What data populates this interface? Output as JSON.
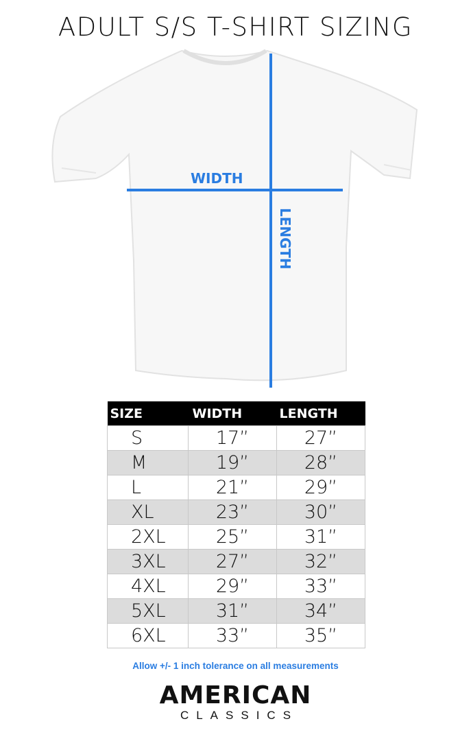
{
  "title": "ADULT S/S T-SHIRT SIZING",
  "diagram": {
    "width_label": "WIDTH",
    "length_label": "LENGTH",
    "line_color": "#2a7de1"
  },
  "table": {
    "headers": [
      "SIZE",
      "WIDTH",
      "LENGTH"
    ],
    "rows": [
      [
        "S",
        "17”",
        "27”"
      ],
      [
        "M",
        "19”",
        "28”"
      ],
      [
        "L",
        "21”",
        "29”"
      ],
      [
        "XL",
        "23”",
        "30”"
      ],
      [
        "2XL",
        "25”",
        "31”"
      ],
      [
        "3XL",
        "27”",
        "32”"
      ],
      [
        "4XL",
        "29”",
        "33”"
      ],
      [
        "5XL",
        "31”",
        "34”"
      ],
      [
        "6XL",
        "33”",
        "35”"
      ]
    ]
  },
  "note": "Allow +/- 1 inch tolerance on all measurements",
  "logo": {
    "line1": "AMERICAN",
    "line2": "CLASSICS"
  }
}
